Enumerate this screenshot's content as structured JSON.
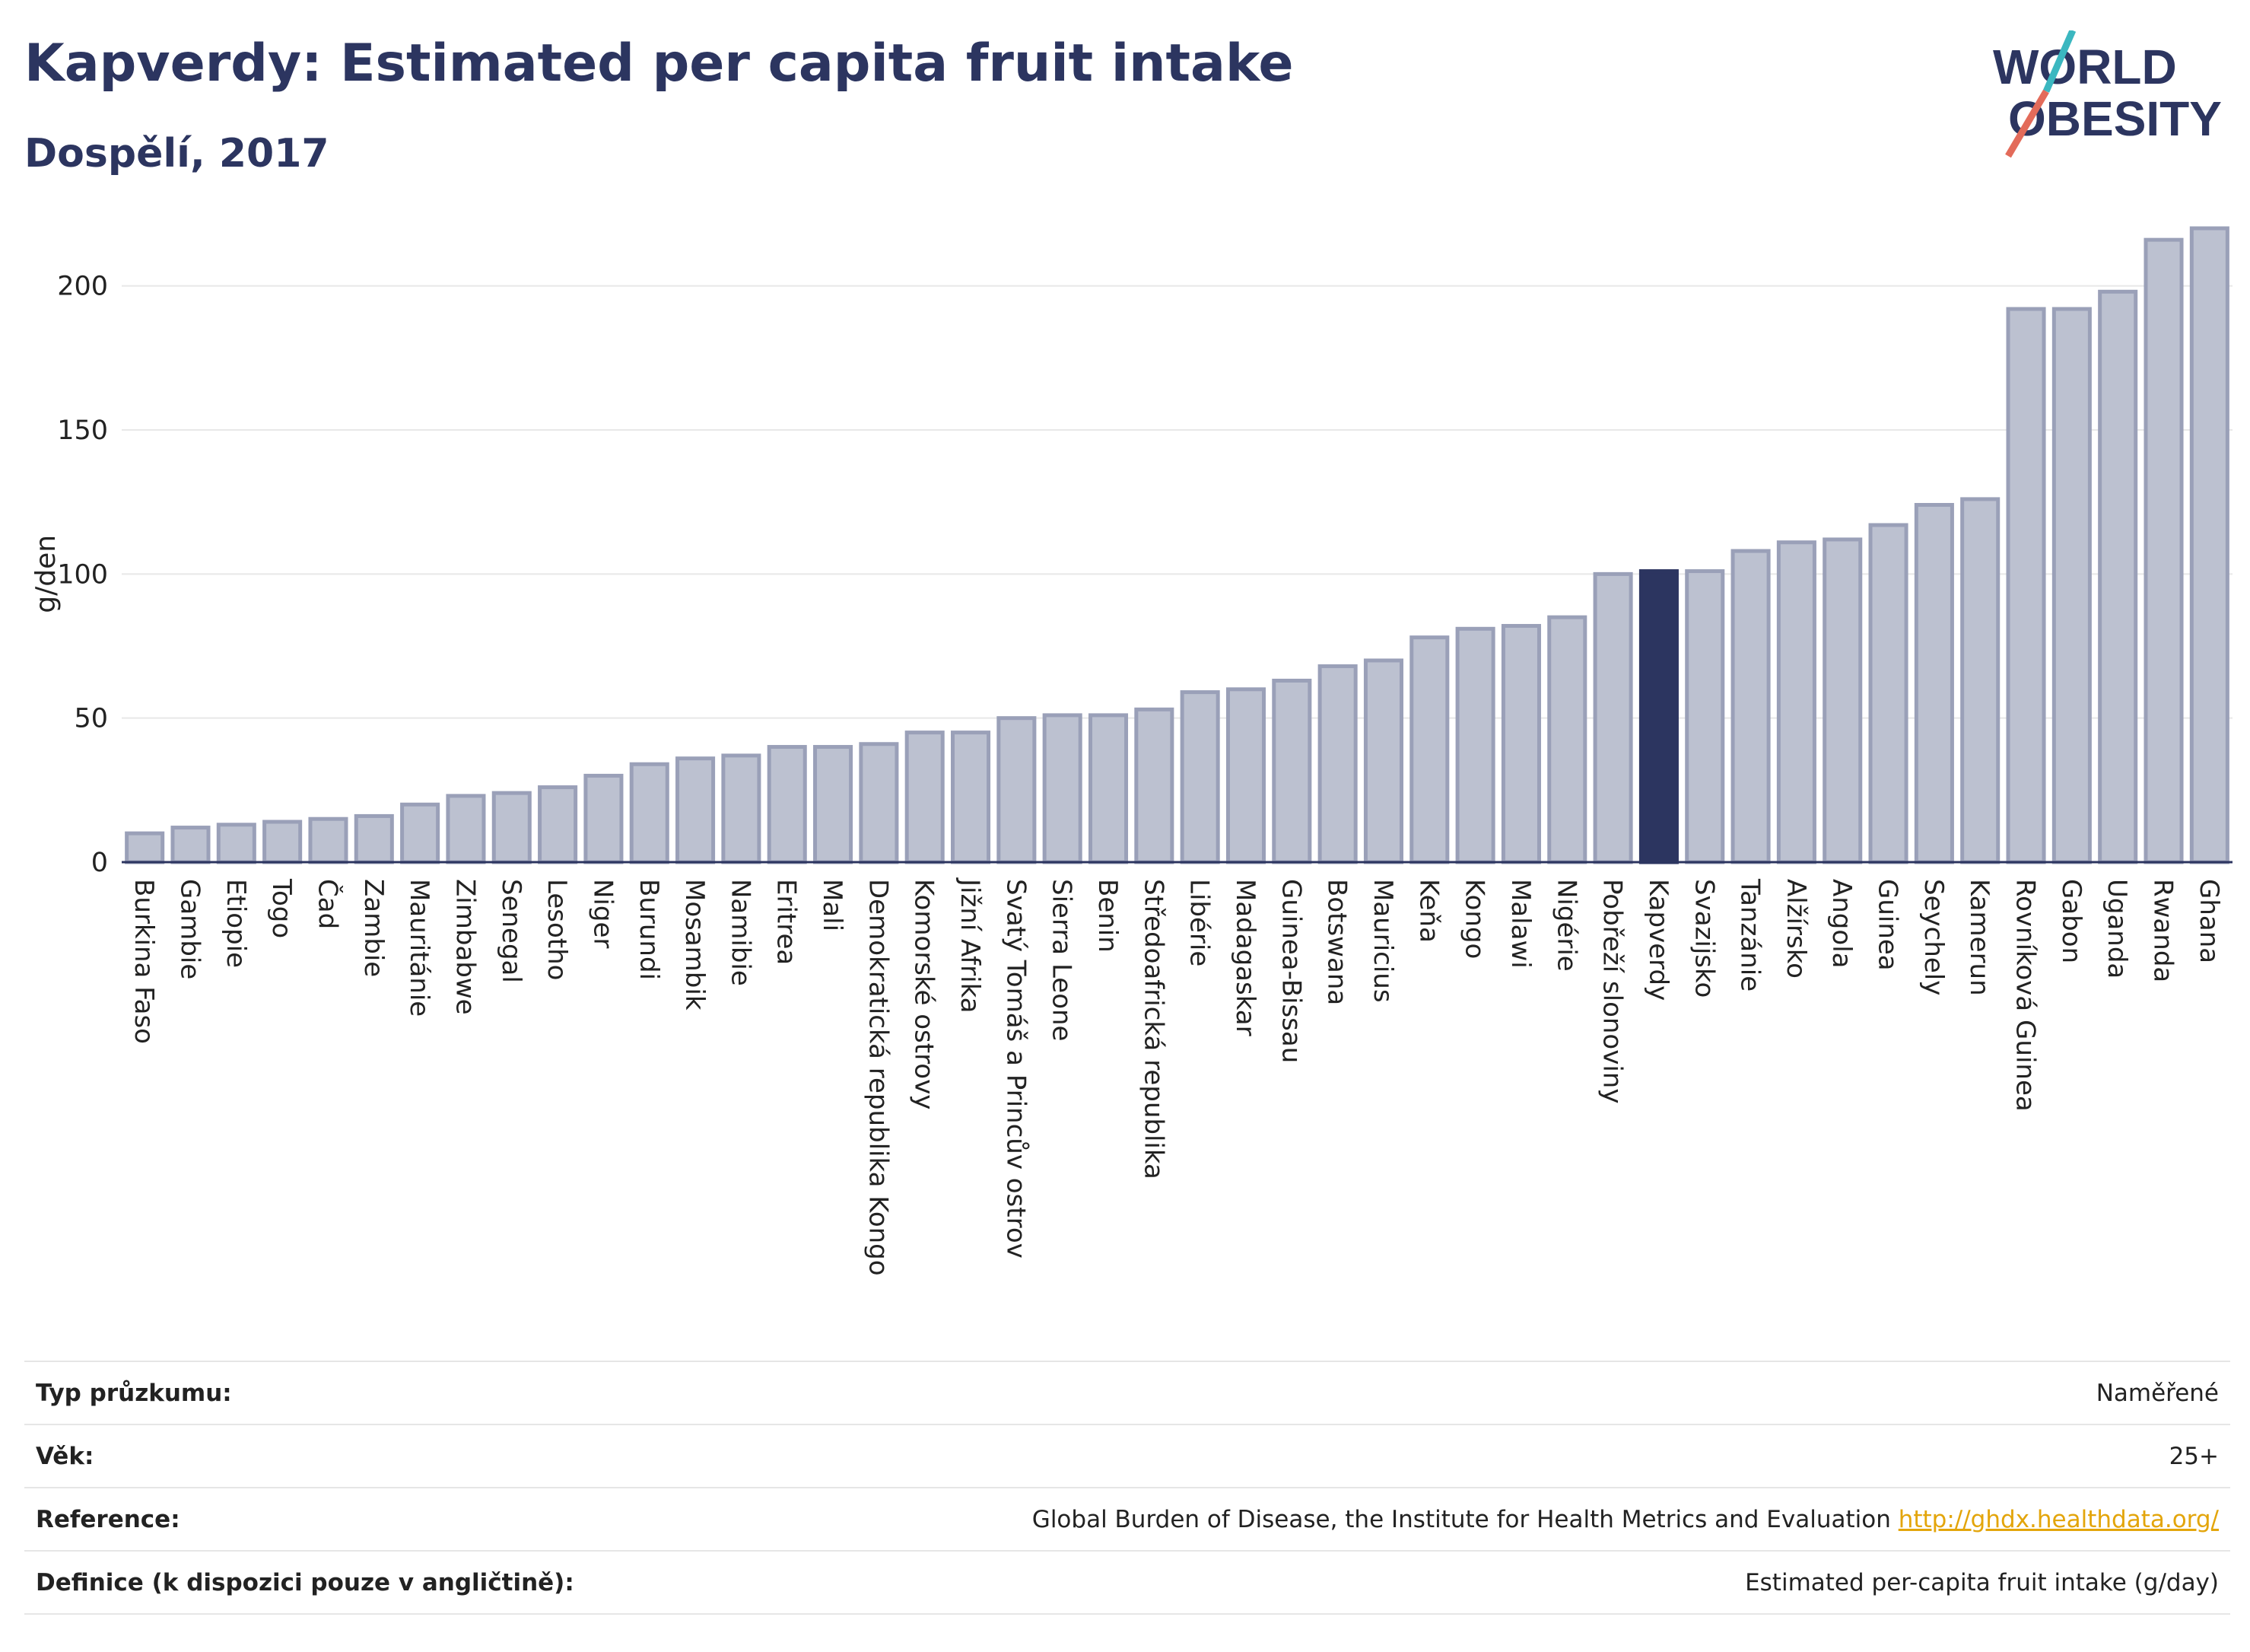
{
  "header": {
    "title": "Kapverdy: Estimated per capita fruit intake",
    "subtitle": "Dospělí, 2017"
  },
  "logo": {
    "line1": "WORLD",
    "line2": "OBESITY",
    "colors": {
      "text": "#2c3560",
      "accent_teal": "#3bb7c0",
      "accent_red": "#e36b5a"
    }
  },
  "colors": {
    "bar_default": "#bcc1d0",
    "bar_default_stroke": "#9aa0b8",
    "bar_highlight": "#2c3560",
    "grid": "#e8e8e8",
    "axis": "#2c3560"
  },
  "chart_data": {
    "type": "bar",
    "title": "",
    "xlabel": "",
    "ylabel": "g/den",
    "ylim": [
      0,
      220
    ],
    "yticks": [
      0,
      50,
      100,
      150,
      200
    ],
    "grid": true,
    "highlight": "Kapverdy",
    "categories": [
      "Burkina Faso",
      "Gambie",
      "Etiopie",
      "Togo",
      "Čad",
      "Zambie",
      "Mauritánie",
      "Zimbabwe",
      "Senegal",
      "Lesotho",
      "Niger",
      "Burundi",
      "Mosambik",
      "Namibie",
      "Eritrea",
      "Mali",
      "Demokratická republika Kongo",
      "Komorské ostrovy",
      "Jižní Afrika",
      "Svatý Tomáš a Princův ostrov",
      "Sierra Leone",
      "Benin",
      "Středoafrická republika",
      "Libérie",
      "Madagaskar",
      "Guinea-Bissau",
      "Botswana",
      "Mauricius",
      "Keňa",
      "Kongo",
      "Malawi",
      "Nigérie",
      "Pobřeží slonoviny",
      "Kapverdy",
      "Svazijsko",
      "Tanzánie",
      "Alžírsko",
      "Angola",
      "Guinea",
      "Seychely",
      "Kamerun",
      "Rovníková Guinea",
      "Gabon",
      "Uganda",
      "Rwanda",
      "Ghana"
    ],
    "values": [
      10,
      12,
      13,
      14,
      15,
      16,
      20,
      23,
      24,
      26,
      30,
      34,
      36,
      37,
      40,
      40,
      41,
      45,
      45,
      50,
      51,
      51,
      53,
      59,
      60,
      63,
      68,
      70,
      78,
      81,
      82,
      85,
      100,
      101,
      101,
      108,
      111,
      112,
      117,
      124,
      126,
      192,
      192,
      198,
      216,
      220
    ]
  },
  "info": [
    {
      "label": "Typ průzkumu:",
      "value": "Naměřené"
    },
    {
      "label": "Věk:",
      "value": "25+"
    },
    {
      "label": "Reference:",
      "value": "Global Burden of Disease, the Institute for Health Metrics and Evaluation",
      "link": "http://ghdx.healthdata.org/"
    },
    {
      "label": "Definice (k dispozici pouze v angličtině):",
      "value": "Estimated per-capita fruit intake (g/day)"
    }
  ]
}
